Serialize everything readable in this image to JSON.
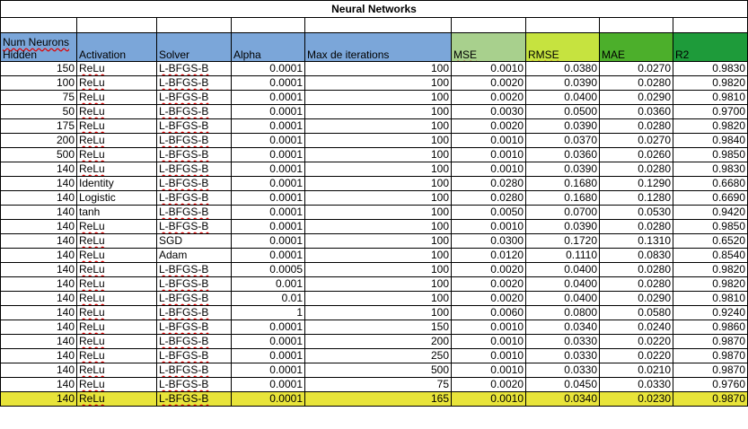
{
  "sheet": {
    "title": "Neural Networks",
    "headers": {
      "neurons": [
        "Num Neurons",
        "Hidden"
      ],
      "activation": "Activation",
      "solver": "Solver",
      "alpha": "Alpha",
      "max_iter": "Max de iterations",
      "mse": "MSE",
      "rmse": "RMSE",
      "mae": "MAE",
      "r2": "R2"
    },
    "header_colors": {
      "params": "#7ba6d9",
      "mse": "#a8d08d",
      "rmse": "#c6e33f",
      "mae": "#4caf2b",
      "r2": "#1e9b3a",
      "highlight_row": "#e8e43a"
    },
    "rows": [
      [
        "150",
        "ReLu",
        "L-BFGS-B",
        "0.0001",
        "100",
        "0.0010",
        "0.0380",
        "0.0270",
        "0.9830"
      ],
      [
        "100",
        "ReLu",
        "L-BFGS-B",
        "0.0001",
        "100",
        "0.0020",
        "0.0390",
        "0.0280",
        "0.9820"
      ],
      [
        "75",
        "ReLu",
        "L-BFGS-B",
        "0.0001",
        "100",
        "0.0020",
        "0.0400",
        "0.0290",
        "0.9810"
      ],
      [
        "50",
        "ReLu",
        "L-BFGS-B",
        "0.0001",
        "100",
        "0.0030",
        "0.0500",
        "0.0360",
        "0.9700"
      ],
      [
        "175",
        "ReLu",
        "L-BFGS-B",
        "0.0001",
        "100",
        "0.0020",
        "0.0390",
        "0.0280",
        "0.9820"
      ],
      [
        "200",
        "ReLu",
        "L-BFGS-B",
        "0.0001",
        "100",
        "0.0010",
        "0.0370",
        "0.0270",
        "0.9840"
      ],
      [
        "500",
        "ReLu",
        "L-BFGS-B",
        "0.0001",
        "100",
        "0.0010",
        "0.0360",
        "0.0260",
        "0.9850"
      ],
      [
        "140",
        "ReLu",
        "L-BFGS-B",
        "0.0001",
        "100",
        "0.0010",
        "0.0390",
        "0.0280",
        "0.9830"
      ],
      [
        "140",
        "Identity",
        "L-BFGS-B",
        "0.0001",
        "100",
        "0.0280",
        "0.1680",
        "0.1290",
        "0.6680"
      ],
      [
        "140",
        "Logistic",
        "L-BFGS-B",
        "0.0001",
        "100",
        "0.0280",
        "0.1680",
        "0.1280",
        "0.6690"
      ],
      [
        "140",
        "tanh",
        "L-BFGS-B",
        "0.0001",
        "100",
        "0.0050",
        "0.0700",
        "0.0530",
        "0.9420"
      ],
      [
        "140",
        "ReLu",
        "L-BFGS-B",
        "0.0001",
        "100",
        "0.0010",
        "0.0390",
        "0.0280",
        "0.9850"
      ],
      [
        "140",
        "ReLu",
        "SGD",
        "0.0001",
        "100",
        "0.0300",
        "0.1720",
        "0.1310",
        "0.6520"
      ],
      [
        "140",
        "ReLu",
        "Adam",
        "0.0001",
        "100",
        "0.0120",
        "0.1110",
        "0.0830",
        "0.8540"
      ],
      [
        "140",
        "ReLu",
        "L-BFGS-B",
        "0.0005",
        "100",
        "0.0020",
        "0.0400",
        "0.0280",
        "0.9820"
      ],
      [
        "140",
        "ReLu",
        "L-BFGS-B",
        "0.001",
        "100",
        "0.0020",
        "0.0400",
        "0.0280",
        "0.9820"
      ],
      [
        "140",
        "ReLu",
        "L-BFGS-B",
        "0.01",
        "100",
        "0.0020",
        "0.0400",
        "0.0290",
        "0.9810"
      ],
      [
        "140",
        "ReLu",
        "L-BFGS-B",
        "1",
        "100",
        "0.0060",
        "0.0800",
        "0.0580",
        "0.9240"
      ],
      [
        "140",
        "ReLu",
        "L-BFGS-B",
        "0.0001",
        "150",
        "0.0010",
        "0.0340",
        "0.0240",
        "0.9860"
      ],
      [
        "140",
        "ReLu",
        "L-BFGS-B",
        "0.0001",
        "200",
        "0.0010",
        "0.0330",
        "0.0220",
        "0.9870"
      ],
      [
        "140",
        "ReLu",
        "L-BFGS-B",
        "0.0001",
        "250",
        "0.0010",
        "0.0330",
        "0.0220",
        "0.9870"
      ],
      [
        "140",
        "ReLu",
        "L-BFGS-B",
        "0.0001",
        "500",
        "0.0010",
        "0.0330",
        "0.0210",
        "0.9870"
      ],
      [
        "140",
        "ReLu",
        "L-BFGS-B",
        "0.0001",
        "75",
        "0.0020",
        "0.0450",
        "0.0330",
        "0.9760"
      ],
      [
        "140",
        "ReLu",
        "L-BFGS-B",
        "0.0001",
        "165",
        "0.0010",
        "0.0340",
        "0.0230",
        "0.9870"
      ]
    ],
    "highlighted_row_index": 23
  }
}
